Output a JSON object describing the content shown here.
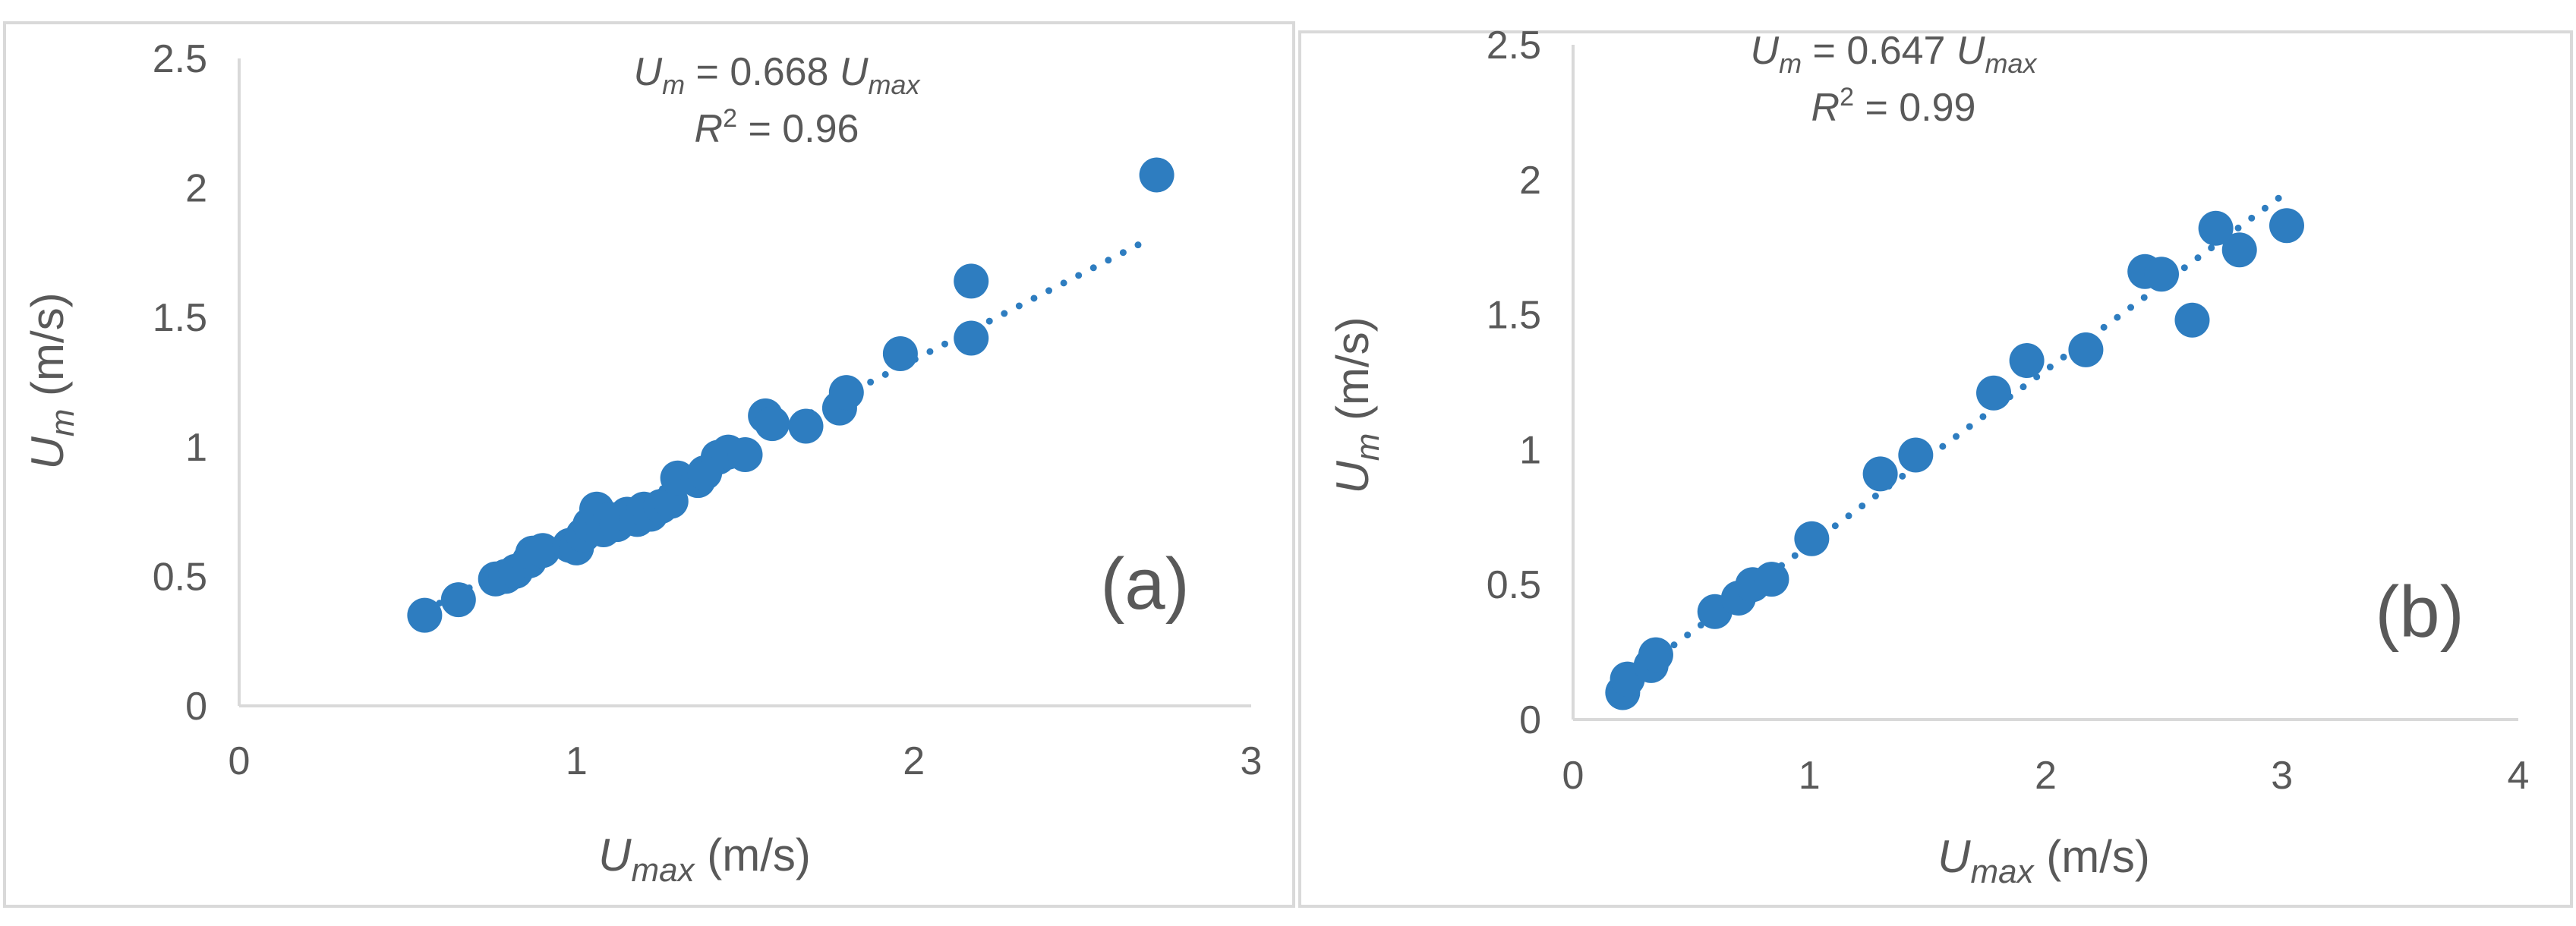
{
  "chart_data": [
    {
      "type": "scatter",
      "panel_label": "(a)",
      "equation": {
        "lhs": "U",
        "lhs_sub": "m",
        "text": " = 0.668 ",
        "rhs": "U",
        "rhs_sub": "max"
      },
      "r2": {
        "lhs": "R",
        "sup": "2",
        "text": " = 0.96"
      },
      "xlabel": {
        "var": "U",
        "sub": "max",
        "unit": " (m/s)"
      },
      "ylabel": {
        "var": "U",
        "sub": "m",
        "unit": " (m/s)"
      },
      "xlim": [
        0,
        3
      ],
      "ylim": [
        0,
        2.5
      ],
      "xticks": [
        {
          "v": 0,
          "label": "0"
        },
        {
          "v": 1,
          "label": "1"
        },
        {
          "v": 2,
          "label": "2"
        },
        {
          "v": 3,
          "label": "3"
        }
      ],
      "yticks": [
        {
          "v": 0,
          "label": "0"
        },
        {
          "v": 0.5,
          "label": "0.5"
        },
        {
          "v": 1,
          "label": "1"
        },
        {
          "v": 1.5,
          "label": "1.5"
        },
        {
          "v": 2,
          "label": "2"
        },
        {
          "v": 2.5,
          "label": "2.5"
        }
      ],
      "trendline": {
        "slope": 0.668,
        "x_range": [
          0.55,
          2.7
        ]
      },
      "points": [
        [
          0.55,
          0.35
        ],
        [
          0.65,
          0.41
        ],
        [
          0.76,
          0.49
        ],
        [
          0.79,
          0.5
        ],
        [
          0.82,
          0.52
        ],
        [
          0.86,
          0.56
        ],
        [
          0.87,
          0.59
        ],
        [
          0.9,
          0.6
        ],
        [
          0.98,
          0.62
        ],
        [
          1.0,
          0.61
        ],
        [
          1.02,
          0.66
        ],
        [
          1.04,
          0.7
        ],
        [
          1.06,
          0.76
        ],
        [
          1.08,
          0.68
        ],
        [
          1.1,
          0.72
        ],
        [
          1.12,
          0.7
        ],
        [
          1.15,
          0.74
        ],
        [
          1.18,
          0.72
        ],
        [
          1.2,
          0.76
        ],
        [
          1.22,
          0.74
        ],
        [
          1.25,
          0.77
        ],
        [
          1.28,
          0.79
        ],
        [
          1.3,
          0.88
        ],
        [
          1.36,
          0.87
        ],
        [
          1.38,
          0.9
        ],
        [
          1.42,
          0.96
        ],
        [
          1.45,
          0.98
        ],
        [
          1.5,
          0.97
        ],
        [
          1.56,
          1.12
        ],
        [
          1.58,
          1.09
        ],
        [
          1.68,
          1.08
        ],
        [
          1.78,
          1.15
        ],
        [
          1.8,
          1.21
        ],
        [
          1.96,
          1.36
        ],
        [
          2.17,
          1.42
        ],
        [
          2.17,
          1.64
        ],
        [
          2.72,
          2.05
        ]
      ]
    },
    {
      "type": "scatter",
      "panel_label": "(b)",
      "equation": {
        "lhs": "U",
        "lhs_sub": "m",
        "text": " = 0.647 ",
        "rhs": "U",
        "rhs_sub": "max"
      },
      "r2": {
        "lhs": "R",
        "sup": "2",
        "text": " = 0.99"
      },
      "xlabel": {
        "var": "U",
        "sub": "max",
        "unit": " (m/s)"
      },
      "ylabel": {
        "var": "U",
        "sub": "m",
        "unit": " (m/s)"
      },
      "xlim": [
        0,
        4
      ],
      "ylim": [
        0,
        2.5
      ],
      "xticks": [
        {
          "v": 0,
          "label": "0"
        },
        {
          "v": 1,
          "label": "1"
        },
        {
          "v": 2,
          "label": "2"
        },
        {
          "v": 3,
          "label": "3"
        },
        {
          "v": 4,
          "label": "4"
        }
      ],
      "yticks": [
        {
          "v": 0,
          "label": "0"
        },
        {
          "v": 0.5,
          "label": "0.5"
        },
        {
          "v": 1,
          "label": "1"
        },
        {
          "v": 1.5,
          "label": "1.5"
        },
        {
          "v": 2,
          "label": "2"
        },
        {
          "v": 2.5,
          "label": "2.5"
        }
      ],
      "trendline": {
        "slope": 0.647,
        "x_range": [
          0.2,
          3.02
        ]
      },
      "points": [
        [
          0.21,
          0.1
        ],
        [
          0.23,
          0.15
        ],
        [
          0.33,
          0.2
        ],
        [
          0.35,
          0.24
        ],
        [
          0.6,
          0.4
        ],
        [
          0.7,
          0.45
        ],
        [
          0.76,
          0.5
        ],
        [
          0.84,
          0.52
        ],
        [
          1.01,
          0.67
        ],
        [
          1.3,
          0.91
        ],
        [
          1.45,
          0.98
        ],
        [
          1.78,
          1.21
        ],
        [
          1.92,
          1.33
        ],
        [
          2.17,
          1.37
        ],
        [
          2.42,
          1.66
        ],
        [
          2.49,
          1.65
        ],
        [
          2.62,
          1.48
        ],
        [
          2.72,
          1.82
        ],
        [
          2.82,
          1.74
        ],
        [
          3.02,
          1.83
        ]
      ]
    }
  ]
}
